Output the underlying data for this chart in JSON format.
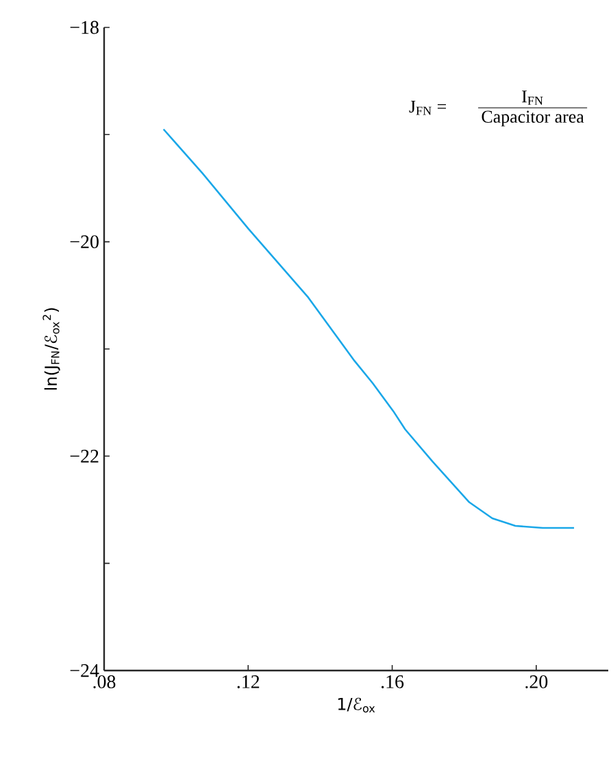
{
  "chart_data": {
    "type": "line",
    "xlabel": "1/ℰ$_{ox}$",
    "ylabel": "ln(J$_{FN}$/ℰ$_{ox}$$^{2}$)",
    "annotations": [
      "J$_{FN}$ =",
      "I$_{FN}$",
      "Capacitor area"
    ],
    "xlim": [
      0.08,
      0.22
    ],
    "ylim": [
      -24,
      -18
    ],
    "xticks": [
      {
        "value": 0.08,
        "label": ".08"
      },
      {
        "value": 0.12,
        "label": ".12"
      },
      {
        "value": 0.16,
        "label": ".16"
      },
      {
        "value": 0.2,
        "label": ".20"
      }
    ],
    "yticks": [
      {
        "value": -24,
        "label": "−24"
      },
      {
        "value": -23,
        "label": null
      },
      {
        "value": -22,
        "label": "−22"
      },
      {
        "value": -21,
        "label": null
      },
      {
        "value": -20,
        "label": "−20"
      },
      {
        "value": -19,
        "label": null
      },
      {
        "value": -18,
        "label": "−18"
      }
    ],
    "marker": "none",
    "line_style": "solid",
    "series": [
      {
        "color": "#1aa7e8",
        "x": [
          0.0965,
          0.1073,
          0.1201,
          0.1367,
          0.1495,
          0.1546,
          0.1603,
          0.1636,
          0.1712,
          0.1763,
          0.1814,
          0.1878,
          0.1942,
          0.2018,
          0.2105
        ],
        "values": [
          -18.95,
          -19.36,
          -19.88,
          -20.52,
          -21.11,
          -21.32,
          -21.58,
          -21.75,
          -22.05,
          -22.24,
          -22.43,
          -22.58,
          -22.65,
          -22.67,
          -22.67
        ]
      }
    ]
  }
}
